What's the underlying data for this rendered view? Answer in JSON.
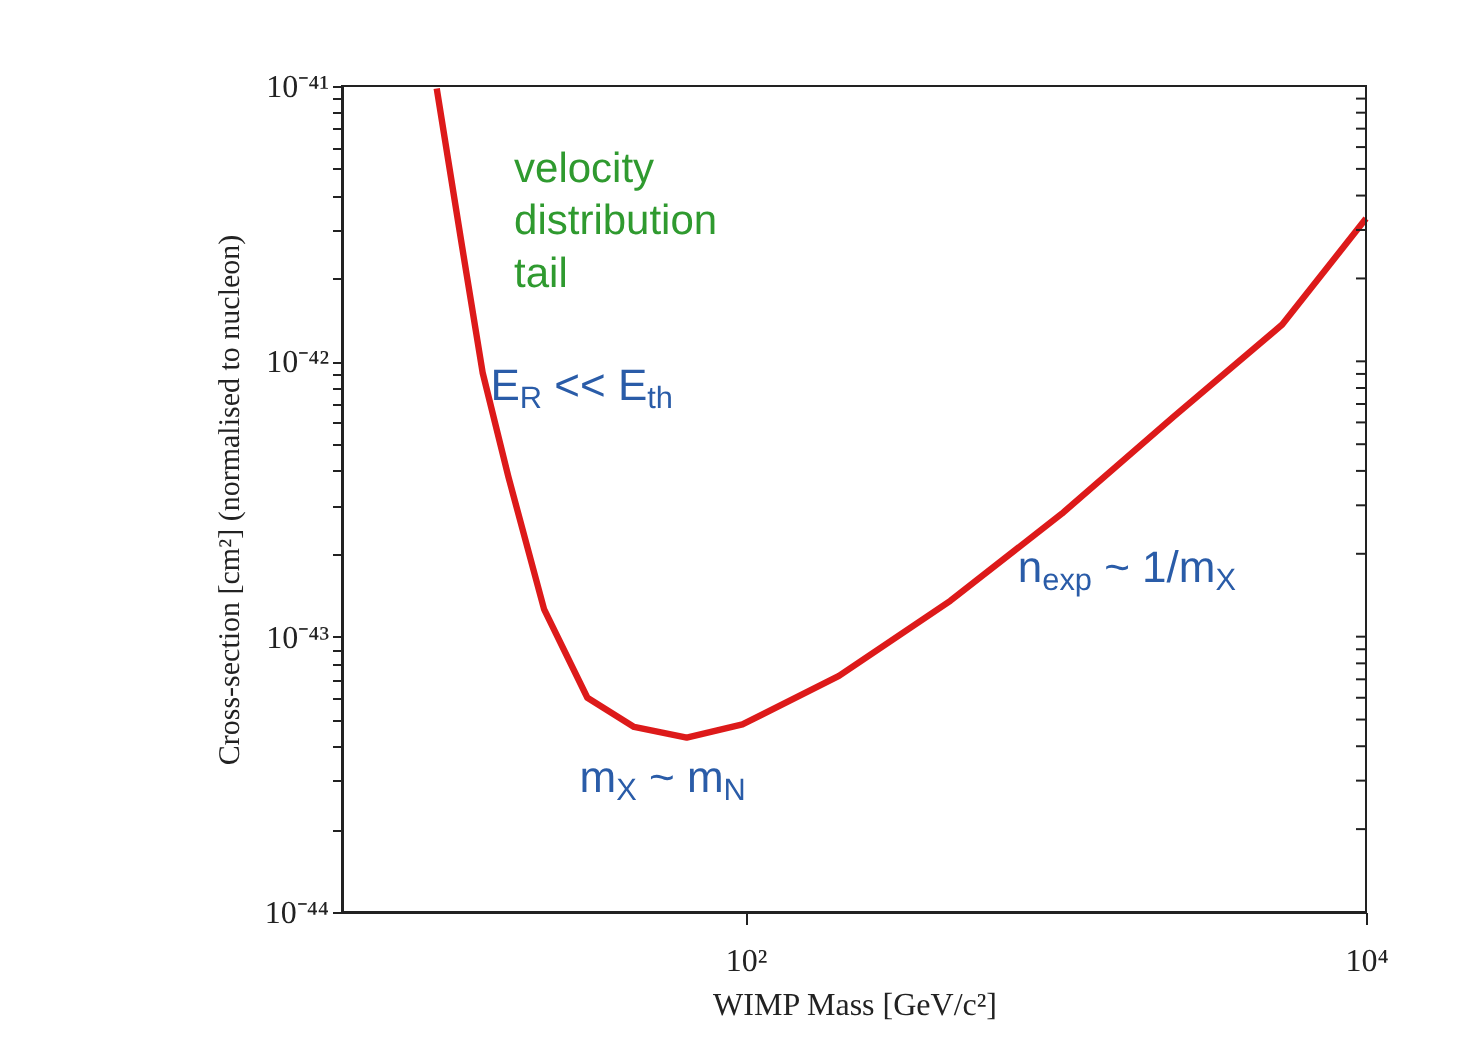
{
  "chart_data": {
    "type": "line",
    "xlabel": "WIMP Mass [GeV/c²]",
    "ylabel": "Cross-section [cm²] (normalised to nucleon)",
    "log": "xy",
    "grid": false,
    "legend": false,
    "marker": "none",
    "line_style": "solid",
    "xlim": [
      5,
      10000
    ],
    "xticks": [
      {
        "value": 100,
        "label": "10²"
      },
      {
        "value": 10000,
        "label": "10⁴"
      }
    ],
    "ylim": [
      1e-44,
      1e-41
    ],
    "yticks": [
      {
        "value": 1e-44,
        "label": "10⁻⁴⁴"
      },
      {
        "value": 2e-44,
        "label": null
      },
      {
        "value": 3e-44,
        "label": null
      },
      {
        "value": 4e-44,
        "label": null
      },
      {
        "value": 5e-44,
        "label": null
      },
      {
        "value": 6e-44,
        "label": null
      },
      {
        "value": 7e-44,
        "label": null
      },
      {
        "value": 8e-44,
        "label": null
      },
      {
        "value": 9e-44,
        "label": null
      },
      {
        "value": 1e-43,
        "label": "10⁻⁴³"
      },
      {
        "value": 2e-43,
        "label": null
      },
      {
        "value": 3e-43,
        "label": null
      },
      {
        "value": 4e-43,
        "label": null
      },
      {
        "value": 5e-43,
        "label": null
      },
      {
        "value": 6e-43,
        "label": null
      },
      {
        "value": 7e-43,
        "label": null
      },
      {
        "value": 8e-43,
        "label": null
      },
      {
        "value": 9e-43,
        "label": null
      },
      {
        "value": 1e-42,
        "label": "10⁻⁴²"
      },
      {
        "value": 2e-42,
        "label": null
      },
      {
        "value": 3e-42,
        "label": null
      },
      {
        "value": 4e-42,
        "label": null
      },
      {
        "value": 5e-42,
        "label": null
      },
      {
        "value": 6e-42,
        "label": null
      },
      {
        "value": 7e-42,
        "label": null
      },
      {
        "value": 8e-42,
        "label": null
      },
      {
        "value": 9e-42,
        "label": null
      },
      {
        "value": 1e-41,
        "label": "10⁻⁴¹"
      }
    ],
    "series": [
      {
        "color": "#dd1a1a",
        "x": [
          10.1,
          12.2,
          14.2,
          17.2,
          22.4,
          30.9,
          43.7,
          64.6,
          97.7,
          200,
          457,
          1047,
          2399,
          5370,
          10000
        ],
        "values": [
          9.8e-42,
          2.6e-42,
          9.1e-43,
          3.8e-43,
          1.26e-43,
          6e-44,
          4.7e-44,
          4.3e-44,
          4.8e-44,
          7.2e-44,
          1.35e-43,
          2.8e-43,
          6.3e-43,
          1.36e-42,
          3.3e-42
        ]
      }
    ],
    "annotations": [
      "velocity distribution tail",
      "E$_{R}$ << E$_{th}$",
      "m$_{X}$ ~ m$_{N}$",
      "n$_{exp}$ ~ 1/m$_{X}$"
    ]
  }
}
